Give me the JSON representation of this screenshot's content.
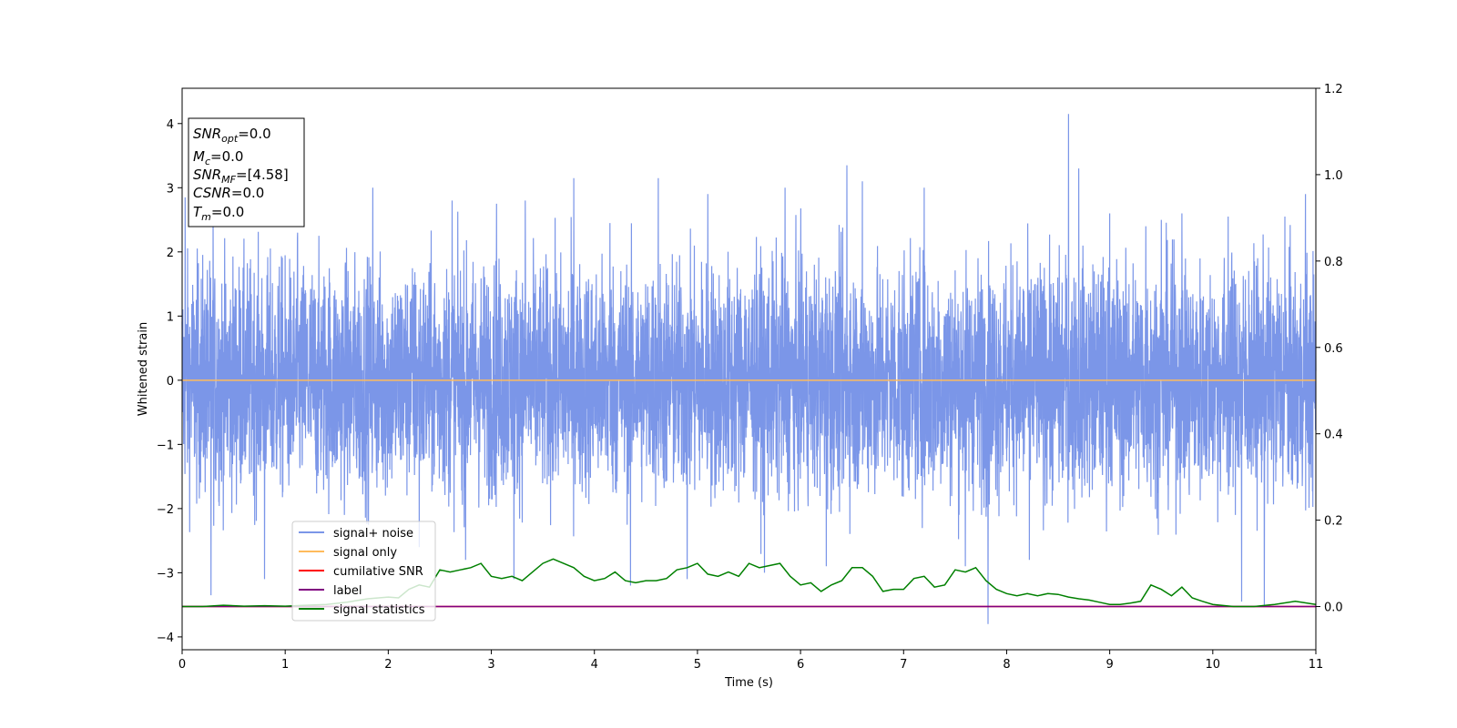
{
  "chart_data": {
    "type": "line",
    "xlabel": "Time (s)",
    "ylabel": "Whitened strain",
    "xlim": [
      0,
      11
    ],
    "ylim": [
      -4.2,
      4.55
    ],
    "y2lim": [
      -0.1,
      1.2
    ],
    "xticks": [
      "0",
      "1",
      "2",
      "3",
      "4",
      "5",
      "6",
      "7",
      "8",
      "9",
      "10",
      "11"
    ],
    "yticks": [
      "−4",
      "−3",
      "−2",
      "−1",
      "0",
      "1",
      "2",
      "3",
      "4"
    ],
    "y2ticks": [
      "0.0",
      "0.2",
      "0.4",
      "0.6",
      "0.8",
      "1.0",
      "1.2"
    ],
    "grid": false,
    "legend_position": "lower-left",
    "info_box": {
      "snr_opt": {
        "base": "SNR",
        "sub": "opt",
        "value": "=0.0"
      },
      "mc": {
        "base": "M",
        "sub": "c",
        "value": "=0.0"
      },
      "snr_mf": {
        "base": "SNR",
        "sub": "MF",
        "value": "=[4.58]"
      },
      "csnr": {
        "base": "CSNR",
        "value": "=0.0"
      },
      "tm": {
        "base": "T",
        "sub": "m",
        "value": "=0.0"
      }
    },
    "series": [
      {
        "name": "signal+ noise",
        "color": "#7b96e8",
        "axis": "left",
        "description_values": "dense noise, approx ±2.5, peaks",
        "peaks": [
          [
            0.03,
            2.85
          ],
          [
            0.28,
            -3.35
          ],
          [
            0.3,
            2.6
          ],
          [
            0.8,
            -3.1
          ],
          [
            1.12,
            2.3
          ],
          [
            1.85,
            3.0
          ],
          [
            2.3,
            -2.6
          ],
          [
            2.62,
            2.8
          ],
          [
            2.75,
            -2.8
          ],
          [
            3.05,
            2.75
          ],
          [
            3.22,
            -3.1
          ],
          [
            3.33,
            2.8
          ],
          [
            3.8,
            3.15
          ],
          [
            4.15,
            2.45
          ],
          [
            4.35,
            -3.2
          ],
          [
            4.62,
            3.15
          ],
          [
            4.9,
            -3.1
          ],
          [
            5.1,
            2.9
          ],
          [
            5.65,
            -3.0
          ],
          [
            5.85,
            3.0
          ],
          [
            6.25,
            -2.9
          ],
          [
            6.45,
            3.35
          ],
          [
            6.6,
            3.1
          ],
          [
            7.2,
            3.0
          ],
          [
            7.6,
            -2.9
          ],
          [
            7.82,
            -3.8
          ],
          [
            8.22,
            -2.8
          ],
          [
            8.6,
            4.15
          ],
          [
            8.7,
            3.3
          ],
          [
            9.0,
            2.6
          ],
          [
            9.35,
            2.4
          ],
          [
            9.5,
            2.5
          ],
          [
            9.7,
            2.6
          ],
          [
            10.15,
            2.55
          ],
          [
            10.28,
            -3.45
          ],
          [
            10.5,
            -3.5
          ],
          [
            10.7,
            2.55
          ],
          [
            10.9,
            2.9
          ]
        ]
      },
      {
        "name": "signal only",
        "color": "#ffbb5c",
        "axis": "left",
        "values": "constant 0"
      },
      {
        "name": "cumilative SNR",
        "color": "#ff0000",
        "axis": "right",
        "values": "constant 0"
      },
      {
        "name": "label",
        "color": "#800080",
        "axis": "right",
        "values": "constant 0"
      },
      {
        "name": "signal statistics",
        "color": "#008000",
        "axis": "right",
        "x": [
          0,
          0.2,
          0.4,
          0.6,
          0.8,
          1.0,
          1.2,
          1.4,
          1.6,
          1.8,
          2.0,
          2.1,
          2.2,
          2.3,
          2.4,
          2.5,
          2.6,
          2.7,
          2.8,
          2.9,
          3.0,
          3.1,
          3.2,
          3.3,
          3.4,
          3.5,
          3.6,
          3.7,
          3.8,
          3.9,
          4.0,
          4.1,
          4.2,
          4.3,
          4.4,
          4.5,
          4.6,
          4.7,
          4.8,
          4.9,
          5.0,
          5.1,
          5.2,
          5.3,
          5.4,
          5.5,
          5.6,
          5.7,
          5.8,
          5.9,
          6.0,
          6.1,
          6.2,
          6.3,
          6.4,
          6.5,
          6.6,
          6.7,
          6.8,
          6.9,
          7.0,
          7.1,
          7.2,
          7.3,
          7.4,
          7.5,
          7.6,
          7.7,
          7.8,
          7.9,
          8.0,
          8.1,
          8.2,
          8.3,
          8.4,
          8.5,
          8.6,
          8.7,
          8.8,
          8.9,
          9.0,
          9.1,
          9.2,
          9.3,
          9.4,
          9.5,
          9.6,
          9.7,
          9.8,
          9.9,
          10.0,
          10.2,
          10.4,
          10.6,
          10.8,
          11.0
        ],
        "values": [
          0.0,
          0.0,
          0.003,
          0.001,
          0.002,
          0.001,
          0.003,
          0.005,
          0.01,
          0.018,
          0.022,
          0.02,
          0.04,
          0.05,
          0.045,
          0.085,
          0.08,
          0.085,
          0.09,
          0.1,
          0.07,
          0.065,
          0.07,
          0.06,
          0.08,
          0.1,
          0.11,
          0.1,
          0.09,
          0.07,
          0.06,
          0.065,
          0.08,
          0.06,
          0.055,
          0.06,
          0.06,
          0.065,
          0.085,
          0.09,
          0.1,
          0.075,
          0.07,
          0.08,
          0.07,
          0.1,
          0.09,
          0.095,
          0.1,
          0.07,
          0.05,
          0.055,
          0.035,
          0.05,
          0.06,
          0.09,
          0.09,
          0.07,
          0.035,
          0.04,
          0.04,
          0.065,
          0.07,
          0.045,
          0.05,
          0.085,
          0.08,
          0.09,
          0.06,
          0.04,
          0.03,
          0.025,
          0.03,
          0.025,
          0.03,
          0.028,
          0.022,
          0.018,
          0.015,
          0.01,
          0.005,
          0.005,
          0.008,
          0.012,
          0.05,
          0.04,
          0.025,
          0.045,
          0.02,
          0.012,
          0.005,
          0.0,
          0.0,
          0.005,
          0.012,
          0.005
        ]
      }
    ]
  }
}
